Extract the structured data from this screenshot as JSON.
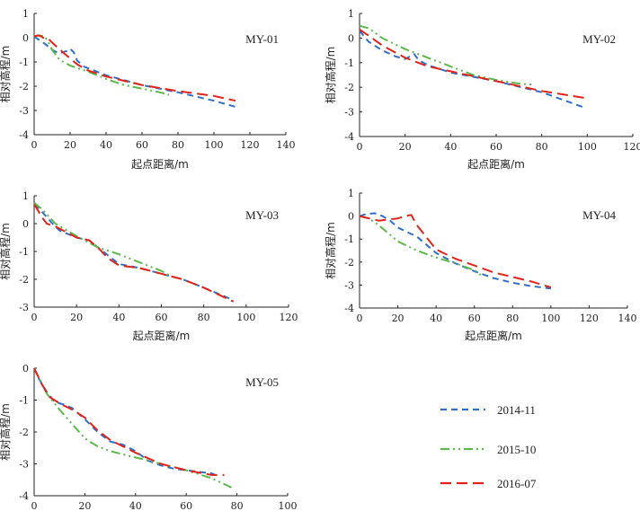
{
  "legend": {
    "items": [
      {
        "label": "2014-11",
        "color": "#2f6fc7",
        "dash": "7,5"
      },
      {
        "label": "2015-10",
        "color": "#5cb84a",
        "dash": "10,4,2,4,2,4"
      },
      {
        "label": "2016-07",
        "color": "#e0241c",
        "dash": "12,6"
      }
    ]
  },
  "chart_data": [
    {
      "type": "line",
      "title": "MY-01",
      "xlabel": "起点距离/m",
      "ylabel": "相对高程/m",
      "xlim": [
        0,
        140
      ],
      "ylim": [
        -4,
        1
      ],
      "xticks": [
        "0",
        "20",
        "40",
        "60",
        "80",
        "100",
        "120",
        "140"
      ],
      "yticks": [
        "1",
        "0",
        "-1",
        "-2",
        "-3",
        "-4"
      ],
      "series": [
        {
          "name": "2014-11",
          "x": [
            0,
            6,
            10,
            14,
            18,
            20,
            22,
            24,
            28,
            40,
            60,
            80,
            100,
            112
          ],
          "y": [
            0.05,
            -0.25,
            -0.5,
            -0.65,
            -0.55,
            -0.45,
            -0.6,
            -0.95,
            -1.2,
            -1.55,
            -1.95,
            -2.25,
            -2.6,
            -2.85
          ]
        },
        {
          "name": "2015-10",
          "x": [
            0,
            3,
            6,
            8,
            10,
            14,
            20,
            30,
            40,
            50,
            60,
            70,
            75
          ],
          "y": [
            0.05,
            0.1,
            0.05,
            -0.2,
            -0.5,
            -0.9,
            -1.15,
            -1.4,
            -1.7,
            -1.95,
            -2.1,
            -2.25,
            -2.35
          ]
        },
        {
          "name": "2016-07",
          "x": [
            0,
            2,
            4,
            6,
            8,
            10,
            16,
            20,
            24,
            30,
            40,
            60,
            80,
            90,
            100,
            112
          ],
          "y": [
            0.05,
            0.1,
            0.05,
            -0.05,
            -0.05,
            -0.2,
            -0.6,
            -0.85,
            -1.1,
            -1.35,
            -1.6,
            -1.95,
            -2.2,
            -2.3,
            -2.4,
            -2.6
          ]
        }
      ]
    },
    {
      "type": "line",
      "title": "MY-02",
      "xlabel": "起点距离/m",
      "ylabel": "相对高程/m",
      "xlim": [
        0,
        120
      ],
      "ylim": [
        -4,
        1
      ],
      "xticks": [
        "0",
        "20",
        "40",
        "60",
        "80",
        "100",
        "120"
      ],
      "yticks": [
        "1",
        "0",
        "-1",
        "-2",
        "-3",
        "-4"
      ],
      "series": [
        {
          "name": "2014-11",
          "x": [
            0,
            4,
            10,
            16,
            20,
            24,
            26,
            30,
            40,
            60,
            80,
            98
          ],
          "y": [
            0.3,
            -0.15,
            -0.5,
            -0.75,
            -0.85,
            -0.65,
            -0.9,
            -1.1,
            -1.4,
            -1.75,
            -2.2,
            -2.8
          ]
        },
        {
          "name": "2015-10",
          "x": [
            0,
            4,
            10,
            20,
            30,
            40,
            50,
            60,
            70,
            77
          ],
          "y": [
            0.5,
            0.4,
            0.0,
            -0.45,
            -0.8,
            -1.15,
            -1.5,
            -1.7,
            -1.85,
            -1.9
          ]
        },
        {
          "name": "2016-07",
          "x": [
            0,
            4,
            10,
            20,
            30,
            40,
            50,
            60,
            70,
            80,
            90,
            100
          ],
          "y": [
            0.35,
            0.1,
            -0.3,
            -0.8,
            -1.15,
            -1.35,
            -1.55,
            -1.75,
            -1.95,
            -2.15,
            -2.3,
            -2.45
          ]
        }
      ]
    },
    {
      "type": "line",
      "title": "MY-03",
      "xlabel": "起点距离/m",
      "ylabel": "相对高程/m",
      "xlim": [
        0,
        120
      ],
      "ylim": [
        -3,
        1
      ],
      "xticks": [
        "0",
        "20",
        "40",
        "60",
        "80",
        "100",
        "120"
      ],
      "yticks": [
        "1",
        "0",
        "-1",
        "-2",
        "-3"
      ],
      "series": [
        {
          "name": "2014-11",
          "x": [
            0,
            4,
            8,
            12,
            20,
            26,
            30,
            35,
            40,
            50,
            60,
            70,
            80,
            94
          ],
          "y": [
            0.7,
            0.4,
            0.05,
            -0.25,
            -0.5,
            -0.6,
            -0.85,
            -1.15,
            -1.45,
            -1.6,
            -1.8,
            -2.0,
            -2.3,
            -2.75
          ]
        },
        {
          "name": "2015-10",
          "x": [
            0,
            4,
            10,
            20,
            30,
            40,
            50,
            60,
            65
          ],
          "y": [
            0.75,
            0.5,
            0.0,
            -0.45,
            -0.85,
            -1.1,
            -1.4,
            -1.7,
            -1.9
          ]
        },
        {
          "name": "2016-07",
          "x": [
            0,
            4,
            6,
            10,
            20,
            26,
            30,
            35,
            40,
            50,
            60,
            70,
            80,
            94
          ],
          "y": [
            0.7,
            0.2,
            0.0,
            -0.1,
            -0.5,
            -0.6,
            -0.85,
            -1.25,
            -1.5,
            -1.6,
            -1.8,
            -2.0,
            -2.3,
            -2.8
          ]
        }
      ]
    },
    {
      "type": "line",
      "title": "MY-04",
      "xlabel": "起点距离/m",
      "ylabel": "相对高程/m",
      "xlim": [
        0,
        140
      ],
      "ylim": [
        -4,
        1
      ],
      "xticks": [
        "0",
        "20",
        "40",
        "60",
        "80",
        "100",
        "120",
        "140"
      ],
      "yticks": [
        "1",
        "0",
        "-1",
        "-2",
        "-3",
        "-4"
      ],
      "series": [
        {
          "name": "2014-11",
          "x": [
            0,
            4,
            8,
            12,
            16,
            20,
            30,
            40,
            50,
            60,
            70,
            80,
            90,
            100
          ],
          "y": [
            0.0,
            0.1,
            0.12,
            0.0,
            -0.2,
            -0.5,
            -0.9,
            -1.6,
            -2.05,
            -2.4,
            -2.7,
            -2.9,
            -3.05,
            -3.15
          ]
        },
        {
          "name": "2015-10",
          "x": [
            0,
            5,
            10,
            20,
            30,
            40,
            50,
            60,
            64
          ],
          "y": [
            0.0,
            -0.1,
            -0.4,
            -1.1,
            -1.5,
            -1.8,
            -2.05,
            -2.35,
            -2.6
          ]
        },
        {
          "name": "2016-07",
          "x": [
            0,
            5,
            10,
            20,
            24,
            27,
            30,
            40,
            50,
            60,
            70,
            80,
            90,
            100
          ],
          "y": [
            0.0,
            -0.1,
            -0.2,
            -0.1,
            0.0,
            0.05,
            -0.4,
            -1.45,
            -1.85,
            -2.15,
            -2.45,
            -2.65,
            -2.85,
            -3.1
          ]
        }
      ]
    },
    {
      "type": "line",
      "title": "MY-05",
      "xlabel": "",
      "ylabel": "相对高程/m",
      "xlim": [
        0,
        100
      ],
      "ylim": [
        -4,
        0
      ],
      "xticks": [
        "0",
        "20",
        "40",
        "60",
        "80",
        "100"
      ],
      "yticks": [
        "0",
        "-1",
        "-2",
        "-3",
        "-4"
      ],
      "series": [
        {
          "name": "2014-11",
          "x": [
            0,
            2,
            5,
            8,
            12,
            15,
            20,
            25,
            30,
            35,
            40,
            45,
            50,
            55,
            60,
            65,
            70,
            73
          ],
          "y": [
            0.0,
            -0.35,
            -0.75,
            -1.05,
            -1.15,
            -1.25,
            -1.6,
            -2.0,
            -2.3,
            -2.4,
            -2.6,
            -2.9,
            -3.05,
            -3.15,
            -3.2,
            -3.25,
            -3.3,
            -3.4
          ]
        },
        {
          "name": "2015-10",
          "x": [
            0,
            5,
            10,
            15,
            20,
            25,
            30,
            40,
            50,
            60,
            70,
            78
          ],
          "y": [
            0.0,
            -0.8,
            -1.3,
            -1.75,
            -2.2,
            -2.45,
            -2.6,
            -2.8,
            -3.0,
            -3.2,
            -3.45,
            -3.75
          ]
        },
        {
          "name": "2016-07",
          "x": [
            0,
            3,
            6,
            10,
            15,
            20,
            25,
            30,
            40,
            50,
            60,
            70,
            75
          ],
          "y": [
            0.0,
            -0.5,
            -0.9,
            -1.1,
            -1.3,
            -1.55,
            -1.95,
            -2.25,
            -2.65,
            -3.0,
            -3.2,
            -3.35,
            -3.35
          ]
        }
      ]
    }
  ]
}
